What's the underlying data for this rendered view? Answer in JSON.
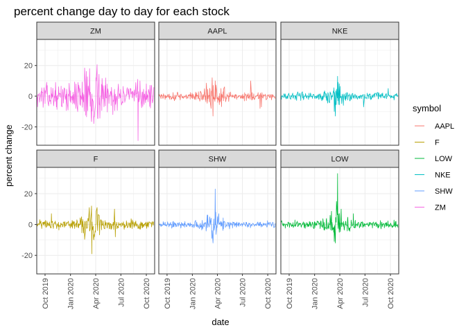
{
  "chart_data": {
    "type": "line",
    "title": "percent change day to day for each stock",
    "xlabel": "date",
    "ylabel": "percent change",
    "x_range": [
      "2019-09-01",
      "2020-10-31"
    ],
    "ylim": [
      -32,
      37
    ],
    "y_ticks": [
      20,
      0,
      -20
    ],
    "y_tick_labels": [
      "20",
      "0",
      "-20"
    ],
    "x_ticks": [
      "2019-10-01",
      "2020-01-01",
      "2020-04-01",
      "2020-07-01",
      "2020-10-01"
    ],
    "x_tick_labels": [
      "Oct 2019",
      "Jan 2020",
      "Apr 2020",
      "Jul 2020",
      "Oct 2020"
    ],
    "grid": true,
    "legend_position": "right",
    "legend_title": "symbol",
    "facets": [
      {
        "label": "ZM",
        "symbol": "ZM",
        "start": "2019-09-03",
        "end": "2020-10-28",
        "amplitude": 4.5,
        "spikes": [
          {
            "date": "2020-01-28",
            "value": 9
          },
          {
            "date": "2020-03-10",
            "value": 18
          },
          {
            "date": "2020-03-16",
            "value": -14
          },
          {
            "date": "2020-04-02",
            "value": 12
          },
          {
            "date": "2020-06-02",
            "value": -12
          },
          {
            "date": "2020-08-31",
            "value": 11
          },
          {
            "date": "2020-09-01",
            "value": -29
          },
          {
            "date": "2020-09-08",
            "value": 10
          },
          {
            "date": "2020-10-01",
            "value": 8
          }
        ]
      },
      {
        "label": "AAPL",
        "symbol": "AAPL",
        "start": "2019-09-03",
        "end": "2020-10-28",
        "amplitude": 1.6,
        "spikes": [
          {
            "date": "2020-03-09",
            "value": -8
          },
          {
            "date": "2020-03-13",
            "value": 12
          },
          {
            "date": "2020-03-16",
            "value": -13
          },
          {
            "date": "2020-03-17",
            "value": 7
          },
          {
            "date": "2020-03-24",
            "value": 10
          },
          {
            "date": "2020-07-31",
            "value": 10
          },
          {
            "date": "2020-09-03",
            "value": -8
          },
          {
            "date": "2020-09-08",
            "value": -7
          }
        ]
      },
      {
        "label": "NKE",
        "symbol": "NKE",
        "start": "2019-09-03",
        "end": "2020-10-28",
        "amplitude": 1.4,
        "spikes": [
          {
            "date": "2020-03-12",
            "value": -10
          },
          {
            "date": "2020-03-16",
            "value": -13
          },
          {
            "date": "2020-03-24",
            "value": 13
          },
          {
            "date": "2020-03-26",
            "value": 9
          },
          {
            "date": "2020-06-26",
            "value": -7
          },
          {
            "date": "2020-09-23",
            "value": 5
          }
        ]
      },
      {
        "label": "F",
        "symbol": "F",
        "start": "2019-09-03",
        "end": "2020-10-28",
        "amplitude": 1.8,
        "spikes": [
          {
            "date": "2019-10-24",
            "value": 7
          },
          {
            "date": "2020-03-09",
            "value": 11
          },
          {
            "date": "2020-03-17",
            "value": 12
          },
          {
            "date": "2020-03-18",
            "value": -19
          },
          {
            "date": "2020-04-06",
            "value": 11
          },
          {
            "date": "2020-06-08",
            "value": 10
          },
          {
            "date": "2020-06-11",
            "value": -8
          }
        ]
      },
      {
        "label": "SHW",
        "symbol": "SHW",
        "start": "2019-09-03",
        "end": "2020-10-28",
        "amplitude": 1.3,
        "spikes": [
          {
            "date": "2020-03-12",
            "value": -9
          },
          {
            "date": "2020-03-16",
            "value": -12
          },
          {
            "date": "2020-03-24",
            "value": 23
          },
          {
            "date": "2020-03-26",
            "value": 8
          },
          {
            "date": "2020-04-06",
            "value": 7
          }
        ]
      },
      {
        "label": "LOW",
        "symbol": "LOW",
        "start": "2019-09-03",
        "end": "2020-10-28",
        "amplitude": 1.5,
        "spikes": [
          {
            "date": "2020-03-12",
            "value": -11
          },
          {
            "date": "2020-03-16",
            "value": -12
          },
          {
            "date": "2020-03-20",
            "value": 15
          },
          {
            "date": "2020-03-24",
            "value": 33
          },
          {
            "date": "2020-04-06",
            "value": 10
          },
          {
            "date": "2020-05-20",
            "value": 7
          }
        ]
      }
    ],
    "legend": [
      {
        "symbol": "AAPL",
        "color": "#F8766D"
      },
      {
        "symbol": "F",
        "color": "#B79F00"
      },
      {
        "symbol": "LOW",
        "color": "#00BA38"
      },
      {
        "symbol": "NKE",
        "color": "#00BFC4"
      },
      {
        "symbol": "SHW",
        "color": "#619CFF"
      },
      {
        "symbol": "ZM",
        "color": "#F564E3"
      }
    ],
    "colors": {
      "AAPL": "#F8766D",
      "F": "#B79F00",
      "LOW": "#00BA38",
      "NKE": "#00BFC4",
      "SHW": "#619CFF",
      "ZM": "#F564E3"
    }
  }
}
